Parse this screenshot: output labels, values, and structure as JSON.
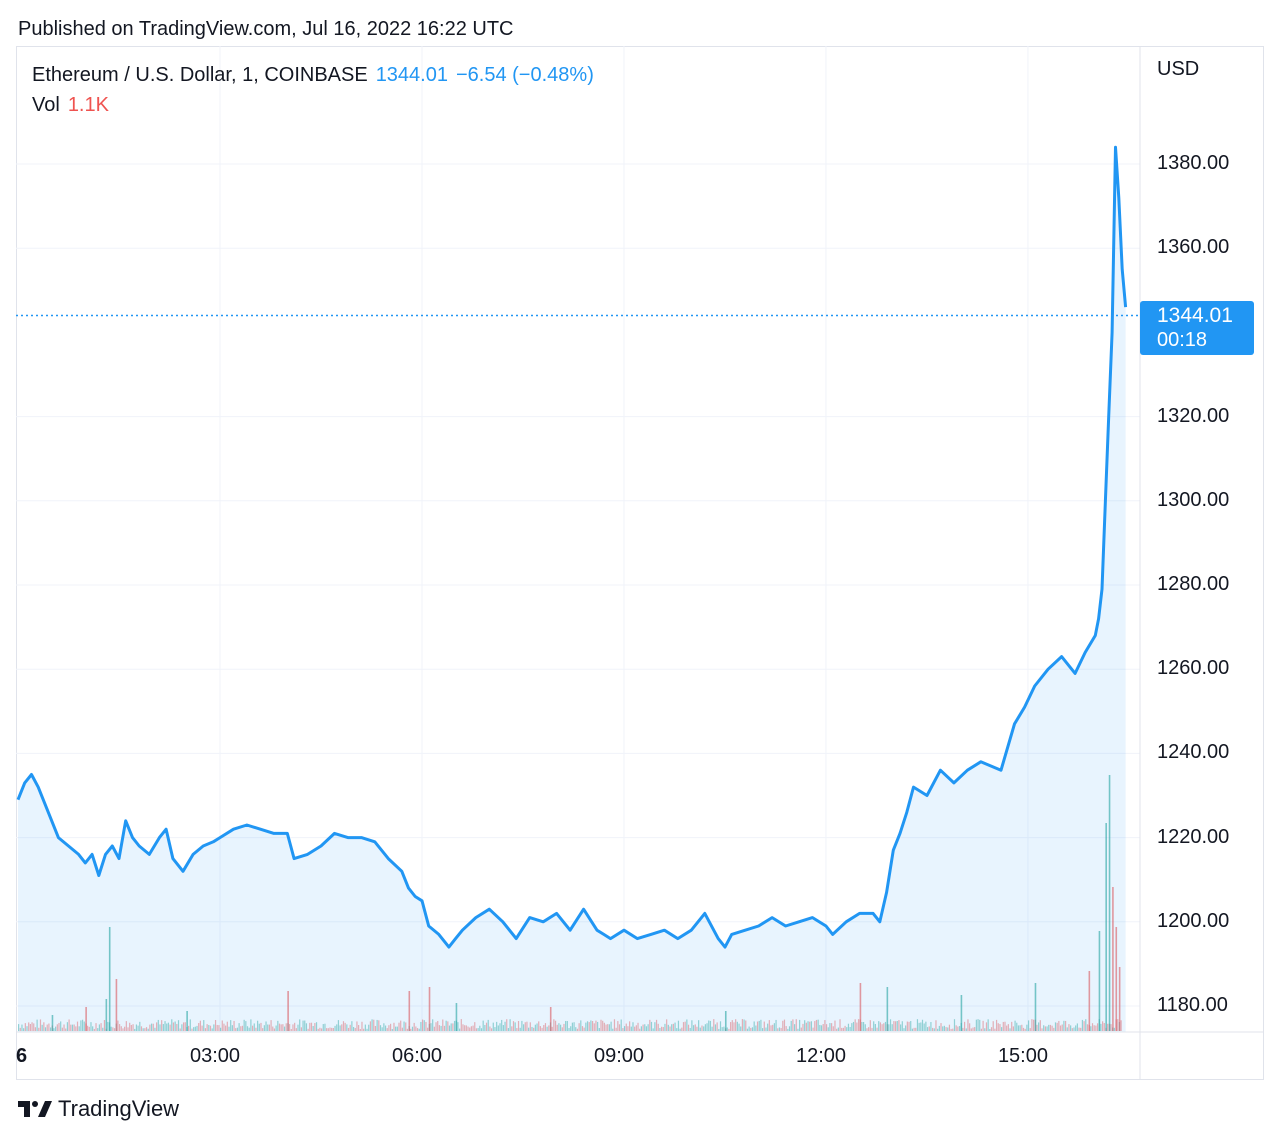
{
  "published": "Published on TradingView.com, Jul 16, 2022 16:22 UTC",
  "legend": {
    "symbol": "Ethereum / U.S. Dollar, 1, COINBASE",
    "last": "1344.01",
    "change": "−6.54 (−0.48%)",
    "vol_label": "Vol",
    "vol_value": "1.1K"
  },
  "currency": "USD",
  "price_tag": {
    "price": "1344.01",
    "countdown": "00:18"
  },
  "brand": "TradingView",
  "colors": {
    "line": "#2196f3",
    "vol_up": "#26a69a",
    "vol_down": "#ef5350",
    "grid": "#f0f3fa"
  },
  "chart_data": {
    "type": "area",
    "title": "Ethereum / U.S. Dollar, 1, COINBASE",
    "ylabel": "USD",
    "ylim": [
      1175,
      1395
    ],
    "y_ticks": [
      "1180.00",
      "1200.00",
      "1220.00",
      "1240.00",
      "1260.00",
      "1280.00",
      "1300.00",
      "1320.00",
      "1360.00",
      "1380.00"
    ],
    "x_ticks": [
      "6",
      "03:00",
      "06:00",
      "09:00",
      "12:00",
      "15:00"
    ],
    "x_tick_hours": [
      0,
      3,
      6,
      9,
      12,
      15
    ],
    "x_range_hours": [
      -0.05,
      16.83
    ],
    "last_price": 1344.01,
    "series": [
      {
        "x_hours": [
          0.0,
          0.1,
          0.2,
          0.3,
          0.45,
          0.6,
          0.75,
          0.9,
          1.0,
          1.1,
          1.2,
          1.3,
          1.4,
          1.5,
          1.6,
          1.7,
          1.8,
          1.95,
          2.1,
          2.2,
          2.3,
          2.45,
          2.6,
          2.75,
          2.9,
          3.0,
          3.2,
          3.4,
          3.6,
          3.8,
          4.0,
          4.1,
          4.3,
          4.5,
          4.7,
          4.9,
          5.1,
          5.3,
          5.5,
          5.7,
          5.8,
          5.9,
          6.0,
          6.1,
          6.25,
          6.4,
          6.5,
          6.6,
          6.8,
          7.0,
          7.2,
          7.4,
          7.6,
          7.8,
          8.0,
          8.2,
          8.4,
          8.6,
          8.7,
          8.8,
          9.0,
          9.2,
          9.4,
          9.6,
          9.8,
          10.0,
          10.2,
          10.4,
          10.5,
          10.6,
          10.8,
          11.0,
          11.2,
          11.4,
          11.6,
          11.8,
          12.0,
          12.1,
          12.3,
          12.5,
          12.7,
          12.8,
          12.9,
          13.0,
          13.1,
          13.2,
          13.3,
          13.5,
          13.7,
          13.9,
          14.1,
          14.3,
          14.45,
          14.6,
          14.8,
          14.95,
          15.1,
          15.3,
          15.5,
          15.7,
          15.85,
          16.0,
          16.05,
          16.1,
          16.15,
          16.2,
          16.25,
          16.3,
          16.35,
          16.4,
          16.45
        ],
        "y": [
          1229,
          1233,
          1235,
          1232,
          1226,
          1220,
          1218,
          1216,
          1214,
          1216,
          1211,
          1216,
          1218,
          1215,
          1224,
          1220,
          1218,
          1216,
          1220,
          1222,
          1215,
          1212,
          1216,
          1218,
          1219,
          1220,
          1222,
          1223,
          1222,
          1221,
          1221,
          1215,
          1216,
          1218,
          1221,
          1220,
          1220,
          1219,
          1215,
          1212,
          1208,
          1206,
          1205,
          1199,
          1197,
          1194,
          1196,
          1198,
          1201,
          1203,
          1200,
          1196,
          1201,
          1200,
          1202,
          1198,
          1203,
          1198,
          1197,
          1196,
          1198,
          1196,
          1197,
          1198,
          1196,
          1198,
          1202,
          1196,
          1194,
          1197,
          1198,
          1199,
          1201,
          1199,
          1200,
          1201,
          1199,
          1197,
          1200,
          1202,
          1202,
          1200,
          1207,
          1217,
          1221,
          1226,
          1232,
          1230,
          1236,
          1233,
          1236,
          1238,
          1237,
          1236,
          1247,
          1251,
          1256,
          1260,
          1263,
          1259,
          1264,
          1268,
          1272,
          1279,
          1300,
          1320,
          1340,
          1384,
          1372,
          1355,
          1346
        ]
      }
    ],
    "volume": {
      "bars": [
        {
          "x_hours": 0.5,
          "value": 0.3,
          "dir": "up"
        },
        {
          "x_hours": 1.0,
          "value": 0.5,
          "dir": "down"
        },
        {
          "x_hours": 1.3,
          "value": 0.7,
          "dir": "up"
        },
        {
          "x_hours": 1.35,
          "value": 2.5,
          "dir": "up"
        },
        {
          "x_hours": 1.45,
          "value": 1.2,
          "dir": "down"
        },
        {
          "x_hours": 2.5,
          "value": 0.4,
          "dir": "up"
        },
        {
          "x_hours": 4.0,
          "value": 0.9,
          "dir": "down"
        },
        {
          "x_hours": 5.8,
          "value": 0.9,
          "dir": "down"
        },
        {
          "x_hours": 6.1,
          "value": 1.0,
          "dir": "down"
        },
        {
          "x_hours": 6.5,
          "value": 0.6,
          "dir": "up"
        },
        {
          "x_hours": 7.9,
          "value": 0.5,
          "dir": "down"
        },
        {
          "x_hours": 10.5,
          "value": 0.4,
          "dir": "up"
        },
        {
          "x_hours": 12.5,
          "value": 1.1,
          "dir": "down"
        },
        {
          "x_hours": 12.9,
          "value": 1.0,
          "dir": "up"
        },
        {
          "x_hours": 14.0,
          "value": 0.8,
          "dir": "up"
        },
        {
          "x_hours": 15.1,
          "value": 1.1,
          "dir": "up"
        },
        {
          "x_hours": 15.9,
          "value": 1.4,
          "dir": "down"
        },
        {
          "x_hours": 16.05,
          "value": 2.4,
          "dir": "up"
        },
        {
          "x_hours": 16.15,
          "value": 5.1,
          "dir": "up"
        },
        {
          "x_hours": 16.2,
          "value": 6.3,
          "dir": "up"
        },
        {
          "x_hours": 16.25,
          "value": 3.5,
          "dir": "down"
        },
        {
          "x_hours": 16.3,
          "value": 2.5,
          "dir": "down"
        },
        {
          "x_hours": 16.35,
          "value": 1.5,
          "dir": "down"
        }
      ]
    }
  }
}
